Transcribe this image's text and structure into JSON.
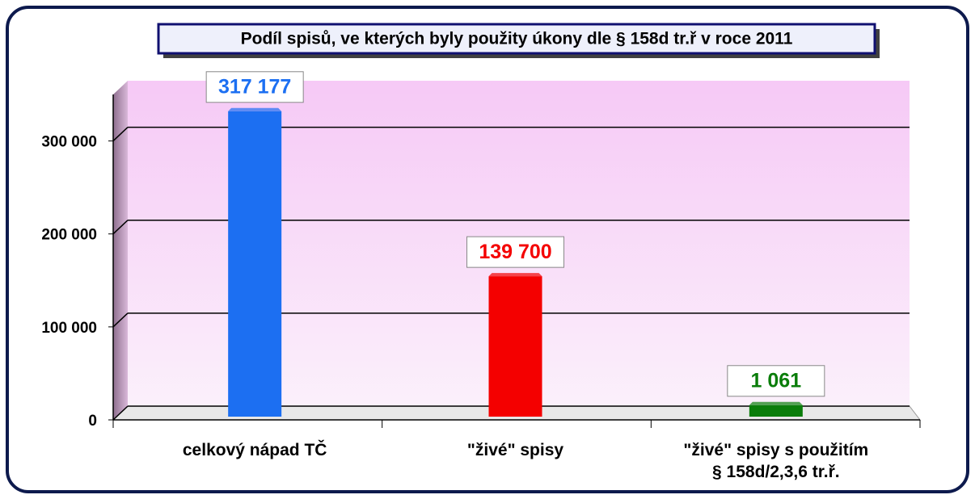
{
  "chart_data": {
    "type": "bar",
    "title": "Podíl spisů, ve kterých byly použity úkony dle § 158d tr.ř v roce 2011",
    "categories": [
      "celkový nápad TČ",
      "\"živé\" spisy",
      "\"živé\" spisy s použitím\n§ 158d/2,3,6 tr.ř."
    ],
    "values": [
      317177,
      139700,
      1061
    ],
    "value_labels": [
      "317 177",
      "139 700",
      "1 061"
    ],
    "colors": [
      "#1c6ff2",
      "#f40000",
      "#0a7d0a"
    ],
    "ylim": [
      0,
      350000
    ],
    "yticks": [
      0,
      {
        "value": 100000,
        "label": "100 000"
      },
      {
        "value": 200000,
        "label": "200 000"
      },
      {
        "value": 300000,
        "label": "300 000"
      }
    ],
    "grid": true
  }
}
